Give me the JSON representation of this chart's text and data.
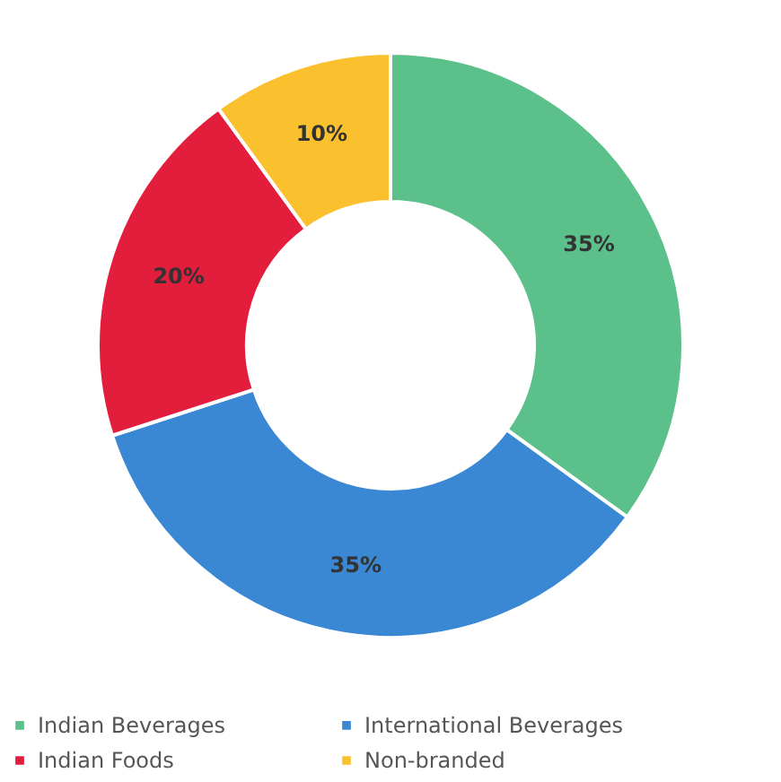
{
  "chart_data": {
    "type": "donut",
    "categories": [
      "Indian Beverages",
      "International Beverages",
      "Indian Foods",
      "Non-branded"
    ],
    "values": [
      35,
      35,
      20,
      10
    ],
    "colors": [
      "#5cc08a",
      "#3a87d4",
      "#e31e3c",
      "#fbc02d"
    ],
    "value_labels": [
      "35%",
      "35%",
      "20%",
      "10%"
    ],
    "legend": "bottom"
  }
}
